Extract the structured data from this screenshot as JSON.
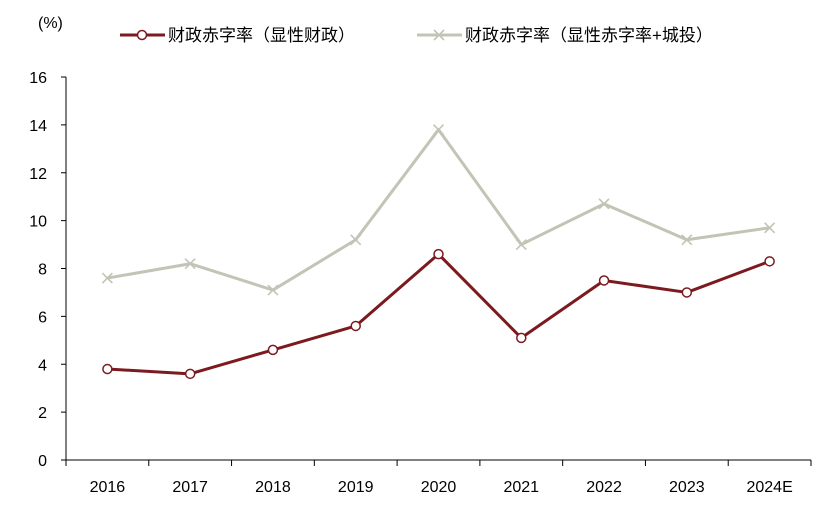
{
  "chart_data": {
    "type": "line",
    "ylabel": "(%)",
    "categories": [
      "2016",
      "2017",
      "2018",
      "2019",
      "2020",
      "2021",
      "2022",
      "2023",
      "2024E"
    ],
    "series": [
      {
        "name": "财政赤字率（显性财政）",
        "values": [
          3.8,
          3.6,
          4.6,
          5.6,
          8.6,
          5.1,
          7.5,
          7.0,
          8.3
        ],
        "color": "#7b1a1f",
        "marker": "circle"
      },
      {
        "name": "财政赤字率（显性赤字率+城投）",
        "values": [
          7.6,
          8.2,
          7.1,
          9.2,
          13.8,
          9.0,
          10.7,
          9.2,
          9.7
        ],
        "color": "#c3c4b5",
        "marker": "x"
      }
    ],
    "ylim": [
      0,
      16
    ],
    "yticks": [
      0,
      2,
      4,
      6,
      8,
      10,
      12,
      14,
      16
    ],
    "grid": false,
    "legend": "top"
  }
}
